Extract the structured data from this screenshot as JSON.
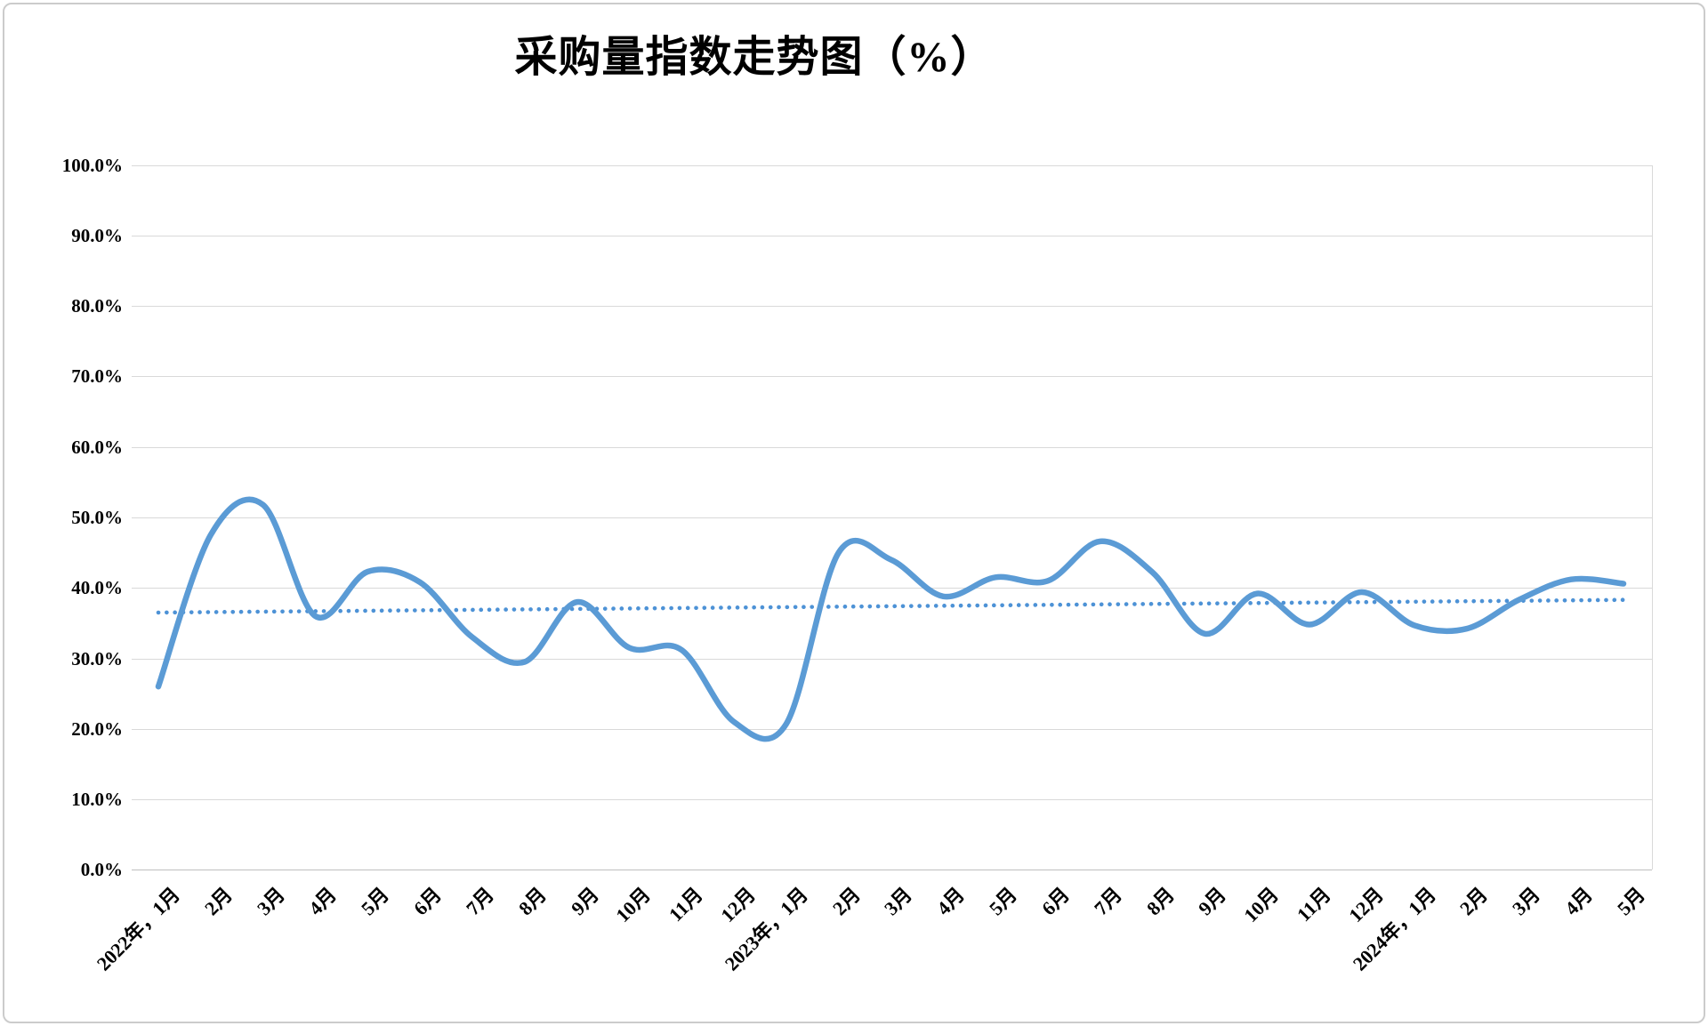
{
  "title": "采购量指数走势图（%）",
  "chart_data": {
    "type": "line",
    "title": "采购量指数走势图（%）",
    "categories": [
      "2022年，1月",
      "2月",
      "3月",
      "4月",
      "5月",
      "6月",
      "7月",
      "8月",
      "9月",
      "10月",
      "11月",
      "12月",
      "2023年，1月",
      "2月",
      "3月",
      "4月",
      "5月",
      "6月",
      "7月",
      "8月",
      "9月",
      "10月",
      "11月",
      "12月",
      "2024年，1月",
      "2月",
      "3月",
      "4月",
      "5月"
    ],
    "series": [
      {
        "name": "采购量指数",
        "type": "smooth-line",
        "color": "#5b9bd5",
        "values": [
          26.0,
          47.5,
          51.8,
          36.0,
          42.3,
          40.8,
          33.0,
          29.5,
          38.0,
          31.5,
          31.2,
          21.0,
          20.7,
          45.0,
          44.0,
          38.8,
          41.5,
          41.0,
          46.6,
          42.2,
          33.5,
          39.2,
          34.8,
          39.4,
          34.7,
          34.2,
          38.3,
          41.2,
          40.6
        ]
      },
      {
        "name": "线性趋势线",
        "type": "dotted-trendline",
        "color": "#4d92d6",
        "start_value": 36.5,
        "end_value": 38.3
      }
    ],
    "yticks": [
      {
        "label": "100.0%",
        "value": 100
      },
      {
        "label": "90.0%",
        "value": 90
      },
      {
        "label": "80.0%",
        "value": 80
      },
      {
        "label": "70.0%",
        "value": 70
      },
      {
        "label": "60.0%",
        "value": 60
      },
      {
        "label": "50.0%",
        "value": 50
      },
      {
        "label": "40.0%",
        "value": 40
      },
      {
        "label": "30.0%",
        "value": 30
      },
      {
        "label": "20.0%",
        "value": 20
      },
      {
        "label": "10.0%",
        "value": 10
      },
      {
        "label": "0.0%",
        "value": 0
      }
    ],
    "ylim": [
      0,
      100
    ],
    "grid": true,
    "legend": "none",
    "x_label_rotation_deg": 45
  },
  "colors": {
    "background": "#ffffff",
    "gridline": "#d9d9d9",
    "axis_line": "#bfbfbf",
    "text": "#000000",
    "border": "#cccccc",
    "series_line": "#5b9bd5",
    "trendline": "#4d92d6"
  }
}
